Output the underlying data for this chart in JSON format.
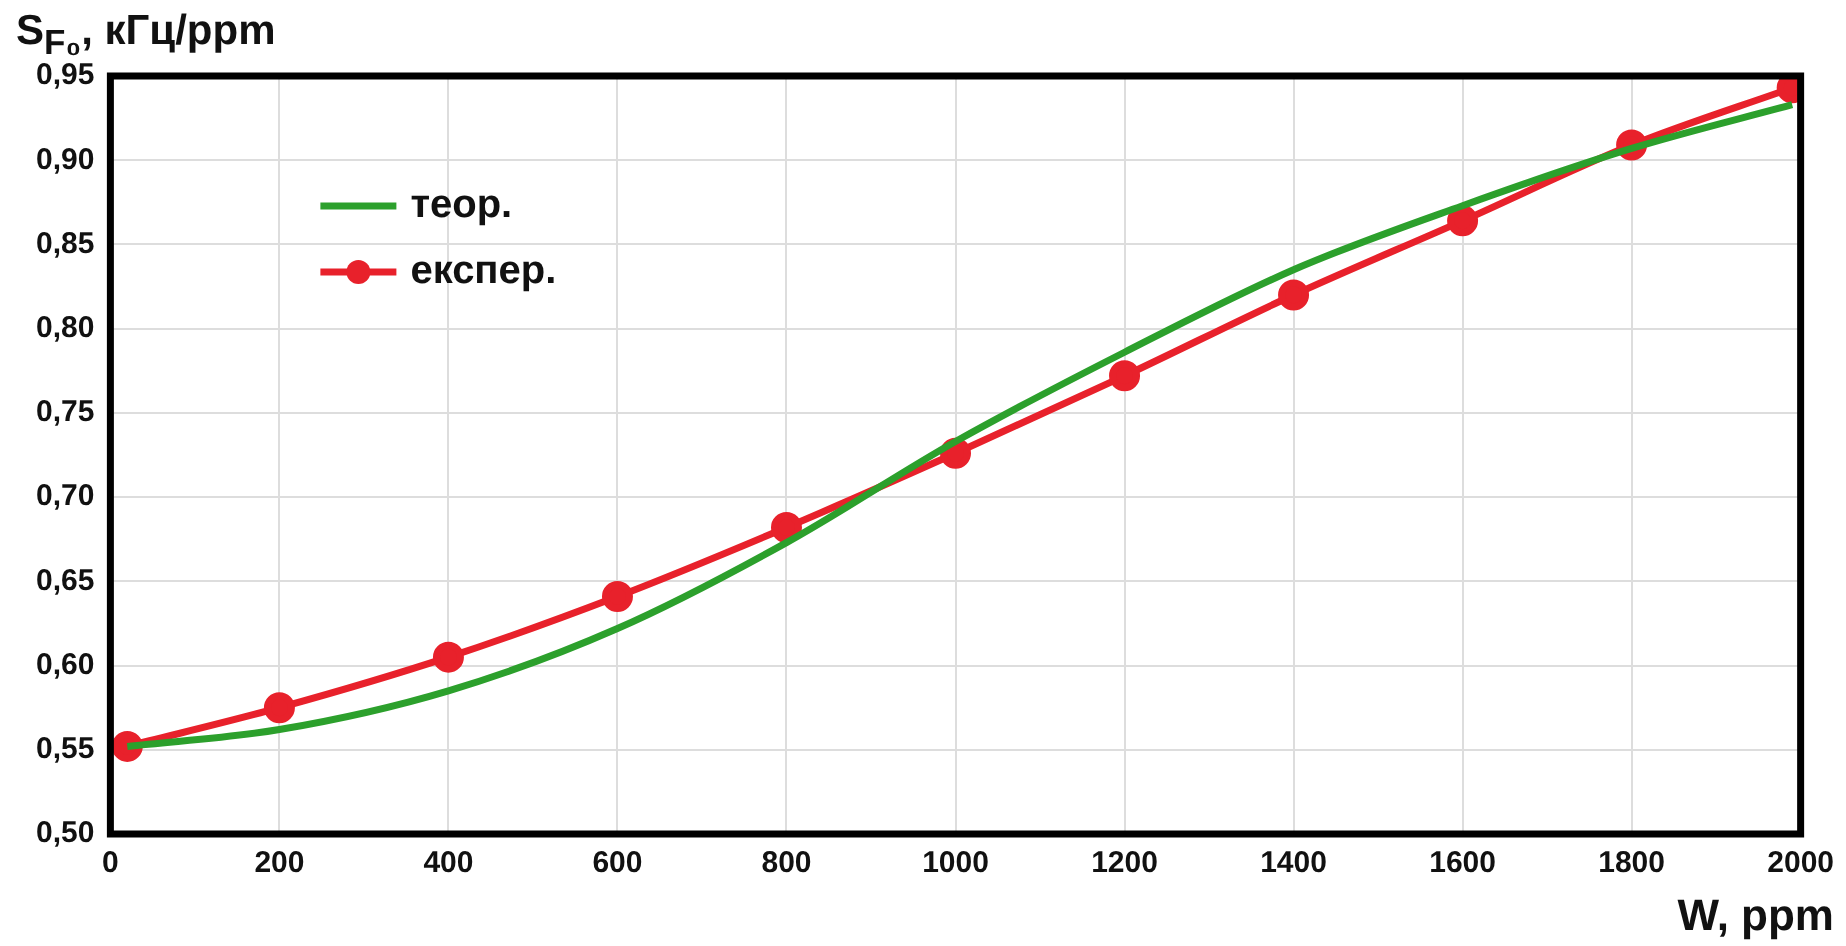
{
  "chart_data": {
    "type": "line",
    "xlabel": "W, ppm",
    "ylabel": "S$_{F₀}$, кГц/ppm",
    "xlim": [
      0,
      2000
    ],
    "xticks": [
      0,
      200,
      400,
      600,
      800,
      1000,
      1200,
      1400,
      1600,
      1800,
      2000
    ],
    "ylim": [
      0.5,
      0.95
    ],
    "yticks": [
      {
        "value": 0.5,
        "label": "0,50"
      },
      {
        "value": 0.55,
        "label": "0,55"
      },
      {
        "value": 0.6,
        "label": "0,60"
      },
      {
        "value": 0.65,
        "label": "0,65"
      },
      {
        "value": 0.7,
        "label": "0,70"
      },
      {
        "value": 0.75,
        "label": "0,75"
      },
      {
        "value": 0.8,
        "label": "0,80"
      },
      {
        "value": 0.85,
        "label": "0,85"
      },
      {
        "value": 0.9,
        "label": "0,90"
      },
      {
        "value": 0.95,
        "label": "0,95"
      }
    ],
    "grid": true,
    "legend": "top left",
    "series": [
      {
        "name": "теор.",
        "color": "#2ca02c",
        "marker": "none",
        "x": [
          20,
          200,
          400,
          600,
          800,
          1000,
          1200,
          1400,
          1600,
          1800,
          1990
        ],
        "values": [
          0.552,
          0.562,
          0.585,
          0.622,
          0.673,
          0.733,
          0.786,
          0.835,
          0.873,
          0.907,
          0.933
        ]
      },
      {
        "name": "експер.",
        "color": "#e8212b",
        "marker": "circle",
        "x": [
          20,
          200,
          400,
          600,
          800,
          1000,
          1200,
          1400,
          1600,
          1800,
          1990
        ],
        "values": [
          0.552,
          0.575,
          0.605,
          0.641,
          0.682,
          0.726,
          0.772,
          0.82,
          0.864,
          0.909,
          0.943
        ]
      }
    ]
  }
}
